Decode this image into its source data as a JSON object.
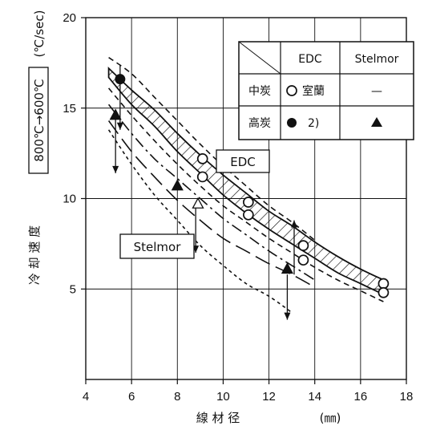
{
  "chart_data": {
    "type": "line",
    "xlim": [
      4,
      18
    ],
    "ylim": [
      0,
      20
    ],
    "xticks": [
      4,
      6,
      8,
      10,
      12,
      14,
      16,
      18
    ],
    "yticks": [
      5,
      10,
      15,
      20
    ],
    "grid": true,
    "xlabel": "線 材 径",
    "xunit": "(㎜)",
    "ylabel_box": "800℃→600℃",
    "ylabel_unit": "(℃/sec)",
    "ylabel": "冷 却 速 度",
    "box_labels": {
      "edc": "EDC",
      "stelmor": "Stelmor"
    },
    "legend": {
      "position": "top-right",
      "col_headers": [
        "EDC",
        "Stelmor"
      ],
      "row_headers": [
        "中炭",
        "高炭"
      ],
      "cells": [
        [
          "室蘭",
          "—"
        ],
        [
          "2)",
          ""
        ]
      ]
    },
    "edc_band": {
      "x": [
        5,
        6,
        7,
        8,
        9,
        10,
        11,
        12,
        13,
        14,
        15,
        16,
        17
      ],
      "upper": [
        17.2,
        16.0,
        14.9,
        13.6,
        12.4,
        11.3,
        10.3,
        9.3,
        8.5,
        7.6,
        6.8,
        6.1,
        5.5
      ],
      "lower": [
        16.7,
        15.2,
        14.0,
        12.6,
        11.4,
        10.2,
        9.2,
        8.3,
        7.5,
        6.7,
        5.9,
        5.3,
        4.7
      ]
    },
    "curves": [
      {
        "style": "dashed",
        "x": [
          5,
          6,
          7,
          8,
          9,
          10,
          11,
          12,
          13,
          14
        ],
        "y": [
          17.8,
          16.9,
          15.6,
          14.3,
          13.0,
          11.8,
          10.7,
          9.6,
          8.7,
          7.7
        ]
      },
      {
        "style": "dashed",
        "x": [
          5,
          6,
          7,
          8,
          9,
          10,
          11,
          12,
          13,
          14,
          15,
          16,
          17
        ],
        "y": [
          16.1,
          14.6,
          13.2,
          11.9,
          10.7,
          9.6,
          8.7,
          7.8,
          7.0,
          6.2,
          5.5,
          4.9,
          4.3
        ]
      },
      {
        "style": "dash-dot",
        "x": [
          5,
          6,
          7,
          8,
          9,
          10,
          11,
          12,
          13,
          14
        ],
        "y": [
          15.2,
          13.6,
          12.2,
          11.1,
          10.0,
          8.9,
          8.0,
          7.1,
          6.3,
          5.5
        ]
      },
      {
        "style": "long-dash",
        "x": [
          5,
          6,
          7,
          8,
          9,
          10,
          11,
          12,
          13,
          14
        ],
        "y": [
          14.3,
          12.6,
          11.2,
          9.9,
          8.8,
          7.8,
          7.1,
          6.4,
          5.8,
          5.1
        ]
      },
      {
        "style": "dotted",
        "x": [
          5,
          6,
          7,
          8,
          9,
          10,
          11,
          12,
          13
        ],
        "y": [
          13.8,
          11.9,
          10.2,
          8.8,
          7.4,
          6.3,
          5.3,
          4.6,
          3.7
        ]
      }
    ],
    "edc_medium_carbon": {
      "x": [
        9.1,
        9.1,
        11.1,
        11.1,
        13.5,
        13.5,
        17.0,
        17.0
      ],
      "y": [
        12.2,
        11.2,
        9.8,
        9.1,
        7.4,
        6.6,
        5.3,
        4.8
      ]
    },
    "edc_high_carbon": {
      "x": [
        5.5
      ],
      "y": [
        16.6
      ]
    },
    "stelmor_high_carbon": {
      "x": [
        5.3,
        8.0,
        12.8
      ],
      "y": [
        14.6,
        10.7,
        6.1
      ]
    },
    "stelmor_open_triangle": {
      "x": [
        8.9
      ],
      "y": [
        9.7
      ]
    },
    "arrows": [
      {
        "x": 5.5,
        "y_from": 17.4,
        "y_to": 13.8
      },
      {
        "x": 5.3,
        "y_from": 14.6,
        "y_to": 11.4
      },
      {
        "x": 8.8,
        "y_from": 9.6,
        "y_to": 7.0
      },
      {
        "x": 12.8,
        "y_from": 5.8,
        "y_to": 3.3
      },
      {
        "x": 13.1,
        "y_from": 5.8,
        "y_to": 8.8
      }
    ]
  }
}
